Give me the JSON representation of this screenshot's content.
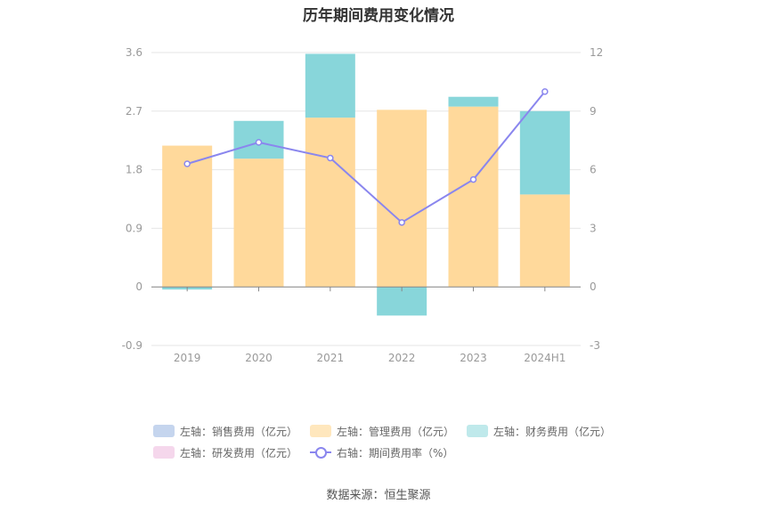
{
  "title": "历年期间费用变化情况",
  "source": "数据来源：恒生聚源",
  "colors": {
    "sales": "#c5d5ee",
    "admin": "#ffd99b",
    "finance": "#88d6da",
    "rd": "#f5d7ec",
    "rate": "#8a86ee",
    "grid": "#e6e6e6",
    "axis": "#999999"
  },
  "legend": [
    {
      "key": "sales",
      "label": "左轴：销售费用（亿元）"
    },
    {
      "key": "admin",
      "label": "左轴：管理费用（亿元）"
    },
    {
      "key": "finance",
      "label": "左轴：财务费用（亿元）"
    },
    {
      "key": "rd",
      "label": "左轴：研发费用（亿元）"
    },
    {
      "key": "rate",
      "label": "右轴：期间费用率（%）"
    }
  ],
  "chart_data": {
    "type": "bar",
    "title": "历年期间费用变化情况",
    "categories": [
      "2019",
      "2020",
      "2021",
      "2022",
      "2023",
      "2024H1"
    ],
    "left_axis": {
      "ylim": [
        -0.9,
        3.6
      ],
      "ticks": [
        "-0.9",
        "0",
        "0.9",
        "1.8",
        "2.7",
        "3.6"
      ]
    },
    "right_axis": {
      "ylim": [
        -3,
        12
      ],
      "ticks": [
        "-3",
        "0",
        "3",
        "6",
        "9",
        "12"
      ]
    },
    "grid": true,
    "legend_position": "bottom",
    "series": [
      {
        "name": "左轴：销售费用（亿元）",
        "key": "sales",
        "axis": "left",
        "values": [
          0,
          0,
          0,
          0,
          0,
          0
        ]
      },
      {
        "name": "左轴：管理费用（亿元）",
        "key": "admin",
        "axis": "left",
        "values": [
          2.17,
          1.97,
          2.6,
          2.72,
          2.77,
          1.42
        ]
      },
      {
        "name": "左轴：财务费用（亿元）",
        "key": "finance",
        "axis": "left",
        "values": [
          -0.04,
          0.58,
          0.98,
          -0.44,
          0.15,
          1.28
        ]
      },
      {
        "name": "左轴：研发费用（亿元）",
        "key": "rd",
        "axis": "left",
        "values": [
          0,
          0,
          0,
          0,
          0,
          0
        ]
      },
      {
        "name": "右轴：期间费用率（%）",
        "key": "rate",
        "axis": "right",
        "type": "line",
        "values": [
          6.3,
          7.4,
          6.6,
          3.3,
          5.5,
          10.0
        ]
      }
    ]
  }
}
